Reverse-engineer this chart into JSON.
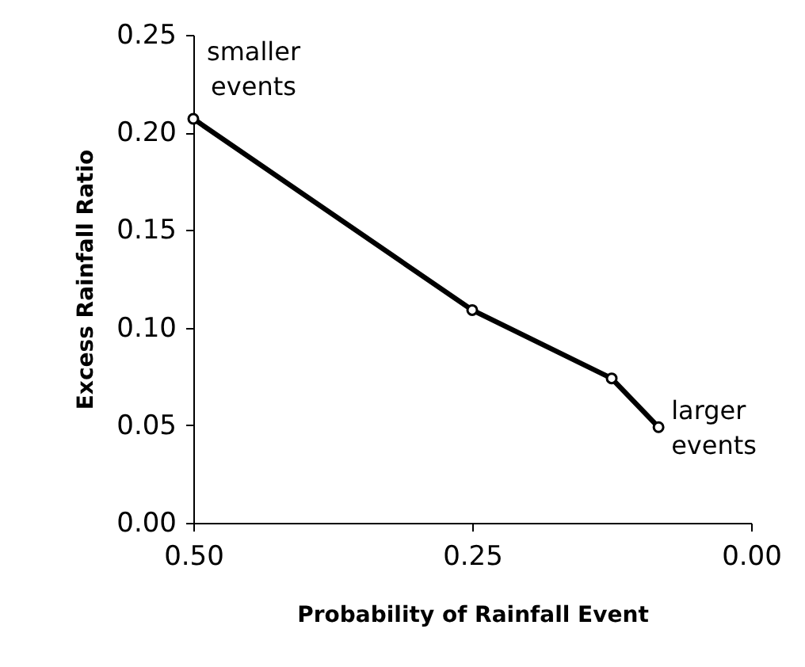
{
  "chart_data": {
    "type": "line",
    "xlabel": "Probability of Rainfall Event",
    "ylabel": "Excess Rainfall Ratio",
    "x": [
      0.5,
      0.25,
      0.125,
      0.083
    ],
    "series": [
      {
        "color": "#000000",
        "values": [
          0.207,
          0.109,
          0.074,
          0.049
        ]
      }
    ],
    "xlim": [
      0.5,
      0.0
    ],
    "xticks": [
      {
        "value": 0.5,
        "label": "0.50"
      },
      {
        "value": 0.25,
        "label": "0.25"
      },
      {
        "value": 0.0,
        "label": "0.00"
      }
    ],
    "ylim": [
      0.0,
      0.25
    ],
    "yticks": [
      {
        "value": 0.0,
        "label": "0.00"
      },
      {
        "value": 0.05,
        "label": "0.05"
      },
      {
        "value": 0.1,
        "label": "0.10"
      },
      {
        "value": 0.15,
        "label": "0.15"
      },
      {
        "value": 0.2,
        "label": "0.20"
      },
      {
        "value": 0.25,
        "label": "0.25"
      }
    ],
    "annotations": [
      {
        "text": "smaller events",
        "x": 0.5,
        "y": 0.207
      },
      {
        "text": "larger events",
        "x": 0.083,
        "y": 0.049
      }
    ],
    "grid": false,
    "marker": "circle",
    "line_style": "solid"
  }
}
